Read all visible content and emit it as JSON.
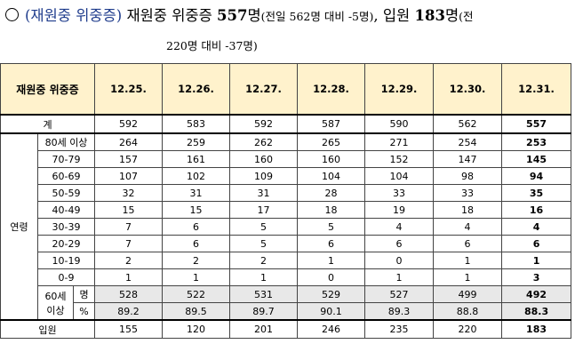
{
  "header": {
    "circle_mark": "○",
    "paren_label": "(재원중 위중증)",
    "text1": " 재원중 위중증 ",
    "num1": "557",
    "unit1": "명",
    "note1": "(전일 562명 대비 -5명)",
    "text2": ", 입원 ",
    "num2": "183",
    "unit2": "명",
    "note2": "(전",
    "line2": "220명 대비 -37명)"
  },
  "table": {
    "corner": "재원중 위중증",
    "dates": [
      "12.25.",
      "12.26.",
      "12.27.",
      "12.28.",
      "12.29.",
      "12.30.",
      "12.31."
    ],
    "total": {
      "label": "계",
      "values": [
        "592",
        "583",
        "592",
        "587",
        "590",
        "562",
        "557"
      ]
    },
    "age_group_label": "연령",
    "ages": [
      {
        "label": "80세 이상",
        "values": [
          "264",
          "259",
          "262",
          "265",
          "271",
          "254",
          "253"
        ]
      },
      {
        "label": "70-79",
        "values": [
          "157",
          "161",
          "160",
          "160",
          "152",
          "147",
          "145"
        ]
      },
      {
        "label": "60-69",
        "values": [
          "107",
          "102",
          "109",
          "104",
          "104",
          "98",
          "94"
        ]
      },
      {
        "label": "50-59",
        "values": [
          "32",
          "31",
          "31",
          "28",
          "33",
          "33",
          "35"
        ]
      },
      {
        "label": "40-49",
        "values": [
          "15",
          "15",
          "17",
          "18",
          "19",
          "18",
          "16"
        ]
      },
      {
        "label": "30-39",
        "values": [
          "7",
          "6",
          "5",
          "5",
          "4",
          "4",
          "4"
        ]
      },
      {
        "label": "20-29",
        "values": [
          "7",
          "6",
          "5",
          "6",
          "6",
          "6",
          "6"
        ]
      },
      {
        "label": "10-19",
        "values": [
          "2",
          "2",
          "2",
          "1",
          "0",
          "1",
          "1"
        ]
      },
      {
        "label": "0-9",
        "values": [
          "1",
          "1",
          "1",
          "0",
          "1",
          "1",
          "3"
        ]
      }
    ],
    "over60": {
      "label_top": "60세",
      "label_bottom": "이상",
      "count": {
        "unit": "명",
        "values": [
          "528",
          "522",
          "531",
          "529",
          "527",
          "499",
          "492"
        ]
      },
      "pct": {
        "unit": "%",
        "values": [
          "89.2",
          "89.5",
          "89.7",
          "90.1",
          "89.3",
          "88.8",
          "88.3"
        ]
      }
    },
    "admission": {
      "label": "입원",
      "values": [
        "155",
        "120",
        "201",
        "246",
        "235",
        "220",
        "183"
      ]
    }
  }
}
